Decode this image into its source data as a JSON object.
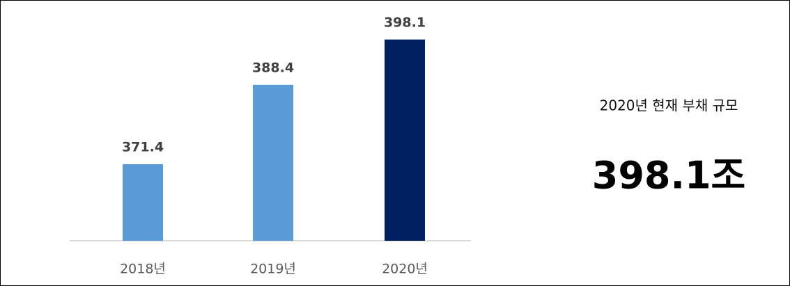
{
  "chart_data": {
    "type": "bar",
    "categories": [
      "2018년",
      "2019년",
      "2020년"
    ],
    "values": [
      371.4,
      388.4,
      398.1
    ],
    "colors": [
      "#5b9bd5",
      "#5b9bd5",
      "#002060"
    ],
    "ylim": [
      355,
      400
    ]
  },
  "side_panel": {
    "caption": "2020년 현재 부채 규모",
    "value": "398.1조"
  }
}
